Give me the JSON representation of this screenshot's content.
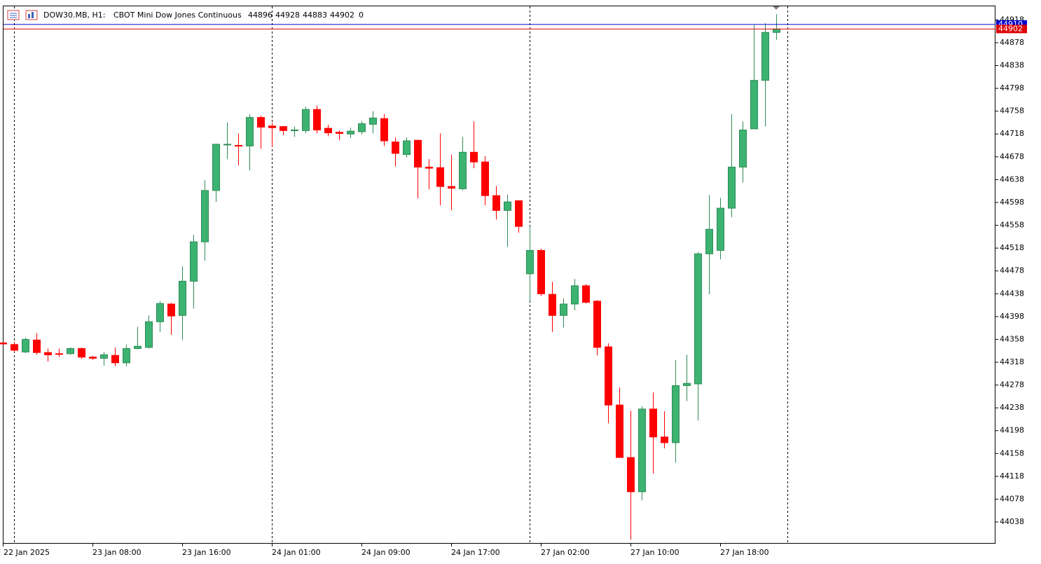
{
  "chart_data": {
    "type": "candlestick",
    "symbol": "DOW30.MB, H1:",
    "description": "CBOT Mini Dow Jones Continuous",
    "tick_volume": 0,
    "ask": 44910,
    "up_color": "#3cb371",
    "down_color": "#ff0000",
    "ask_color": "#0000cc",
    "bid_color": "#e00000",
    "categories": [
      "22 Jan 2025",
      null,
      null,
      null,
      null,
      null,
      null,
      null,
      "23 Jan 08:00",
      null,
      null,
      null,
      null,
      null,
      null,
      null,
      "23 Jan 16:00",
      null,
      null,
      null,
      null,
      null,
      null,
      null,
      "24 Jan 01:00",
      null,
      null,
      null,
      null,
      null,
      null,
      null,
      "24 Jan 09:00",
      null,
      null,
      null,
      null,
      null,
      null,
      null,
      "24 Jan 17:00",
      null,
      null,
      null,
      null,
      null,
      null,
      null,
      "27 Jan 02:00",
      null,
      null,
      null,
      null,
      null,
      null,
      null,
      "27 Jan 10:00",
      null,
      null,
      null,
      null,
      null,
      null,
      null,
      "27 Jan 18:00",
      null,
      null,
      null,
      null,
      null
    ],
    "open": [
      44352,
      44349,
      44336,
      44357,
      44335,
      44333,
      44333,
      44342,
      44327,
      44325,
      44330,
      44317,
      44342,
      44344,
      44389,
      44420,
      44400,
      44460,
      44529,
      44619,
      44699,
      44698,
      44697,
      44747,
      44732,
      44731,
      44724,
      44724,
      44761,
      44728,
      44721,
      44718,
      44722,
      44735,
      44745,
      44704,
      44682,
      44707,
      44660,
      44659,
      44626,
      44622,
      44686,
      44669,
      44610,
      44584,
      44601,
      44473,
      44514,
      44437,
      44400,
      44420,
      44452,
      44425,
      44345,
      44243,
      44151,
      44091,
      44236,
      44187,
      44177,
      44277,
      44280,
      44508,
      44514,
      44588,
      44660,
      44727,
      44812,
      44896
    ],
    "high": [
      44353,
      44354,
      44361,
      44369,
      44342,
      44342,
      44344,
      44344,
      44329,
      44336,
      44344,
      44349,
      44380,
      44400,
      44425,
      44422,
      44486,
      44541,
      44637,
      44701,
      44738,
      44719,
      44753,
      44750,
      44738,
      44732,
      44731,
      44766,
      44768,
      44734,
      44724,
      44729,
      44741,
      44758,
      44753,
      44712,
      44712,
      44708,
      44674,
      44719,
      44682,
      44713,
      44740,
      44679,
      44627,
      44612,
      44601,
      44556,
      44517,
      44459,
      44430,
      44464,
      44455,
      44427,
      44351,
      44274,
      44233,
      44241,
      44265,
      44232,
      44322,
      44331,
      44511,
      44611,
      44606,
      44753,
      44740,
      44909,
      44912,
      44928
    ],
    "low": [
      44349,
      44336,
      44334,
      44331,
      44319,
      44327,
      44331,
      44324,
      44322,
      44312,
      44311,
      44311,
      44341,
      44342,
      44371,
      44366,
      44357,
      44412,
      44496,
      44599,
      44674,
      44663,
      44654,
      44692,
      44695,
      44716,
      44713,
      44719,
      44719,
      44714,
      44707,
      44711,
      44717,
      44719,
      44697,
      44661,
      44677,
      44605,
      44621,
      44593,
      44584,
      44619,
      44658,
      44593,
      44568,
      44520,
      44545,
      44425,
      44434,
      44371,
      44379,
      44409,
      44421,
      44330,
      44211,
      44151,
      44007,
      44076,
      44123,
      44167,
      44142,
      44250,
      44216,
      44437,
      44498,
      44572,
      44633,
      44727,
      44731,
      44883
    ],
    "close": [
      44350,
      44339,
      44358,
      44335,
      44331,
      44332,
      44342,
      44327,
      44325,
      44331,
      44317,
      44342,
      44346,
      44389,
      44421,
      44399,
      44460,
      44529,
      44619,
      44700,
      44700,
      44697,
      44747,
      44730,
      44729,
      44724,
      44725,
      44761,
      44725,
      44720,
      44719,
      44723,
      44736,
      44746,
      44706,
      44684,
      44706,
      44660,
      44658,
      44626,
      44623,
      44686,
      44669,
      44610,
      44584,
      44599,
      44556,
      44514,
      44438,
      44400,
      44420,
      44452,
      44423,
      44344,
      44243,
      44151,
      44091,
      44236,
      44187,
      44177,
      44277,
      44281,
      44508,
      44551,
      44588,
      44660,
      44725,
      44812,
      44896,
      44902
    ],
    "ylim": [
      44000,
      44943
    ],
    "yticks": [
      44038,
      44078,
      44118,
      44158,
      44198,
      44238,
      44278,
      44318,
      44358,
      44398,
      44438,
      44478,
      44518,
      44558,
      44598,
      44638,
      44678,
      44718,
      44758,
      44798,
      44838,
      44878,
      44918
    ]
  }
}
